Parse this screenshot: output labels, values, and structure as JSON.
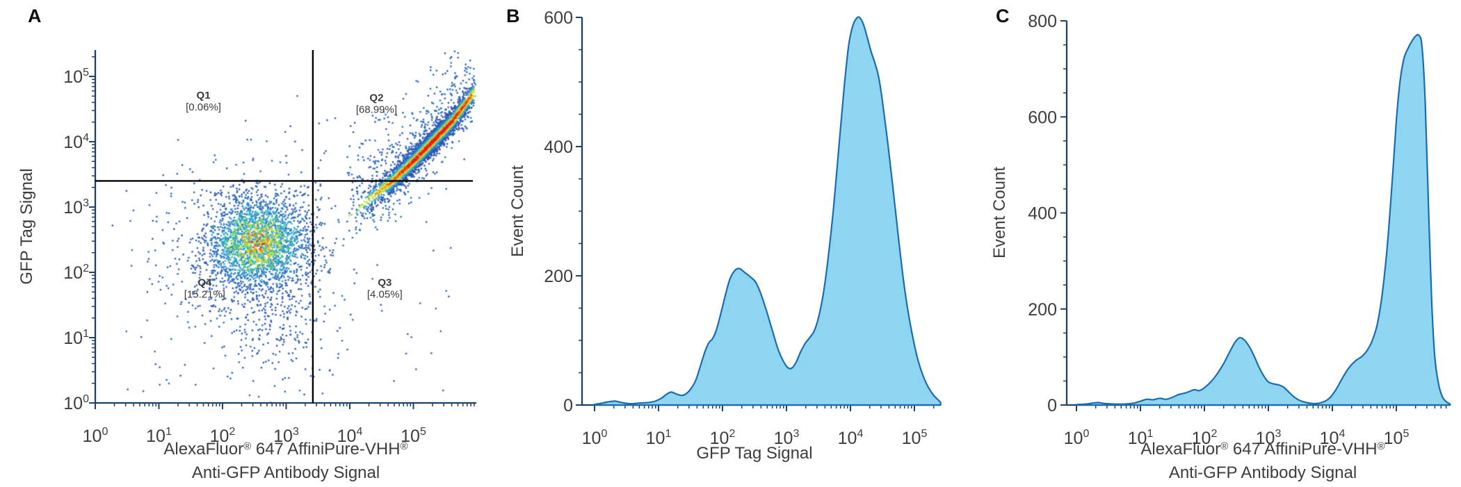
{
  "styles": {
    "axis_color": "#1e4164",
    "text_color": "#3d3d3d",
    "quadrant_line_color": "#000000",
    "quadrant_text_color": "#3a3a3a",
    "histogram_fill": "#8dd5f0",
    "histogram_stroke": "#1a6cae",
    "density_colormap_stops": [
      [
        0,
        "#2d4fae"
      ],
      [
        0.18,
        "#2f9ad6"
      ],
      [
        0.33,
        "#3fc8c3"
      ],
      [
        0.45,
        "#58d06e"
      ],
      [
        0.58,
        "#b2e03a"
      ],
      [
        0.68,
        "#f2e82e"
      ],
      [
        0.78,
        "#f6b41e"
      ],
      [
        0.88,
        "#f07314"
      ],
      [
        1,
        "#e41e1e"
      ]
    ]
  },
  "chart_data": [
    {
      "letter": "A",
      "type": "scatter",
      "title": "",
      "x_axis": {
        "scale": "log",
        "tick_base": "10",
        "major_exponents": [
          0,
          1,
          2,
          3,
          4,
          5
        ],
        "max_log": 5.99,
        "label_lines": [
          "AlexaFluor® 647 AffiniPure-VHH®",
          "Anti-GFP Antibody Signal"
        ]
      },
      "y_axis": {
        "scale": "log",
        "tick_base": "10",
        "major_exponents": [
          0,
          1,
          2,
          3,
          4,
          5
        ],
        "max_log": 5.4,
        "label": "GFP Tag Signal"
      },
      "quadrant_gate": {
        "x_divider": 2630,
        "y_divider": 2510,
        "labels": [
          {
            "name": "Q1",
            "value": "[0.06%]",
            "log_x": 1.7,
            "log_y": 4.66
          },
          {
            "name": "Q2",
            "value": "[68.99%]",
            "log_x": 4.42,
            "log_y": 4.62
          },
          {
            "name": "Q3",
            "value": "[4.05%]",
            "log_x": 4.55,
            "log_y": 1.79
          },
          {
            "name": "Q4",
            "value": "[15.21%]",
            "log_x": 1.72,
            "log_y": 1.79
          }
        ]
      },
      "seed": 42,
      "point_size": 2.4,
      "clusters": [
        {
          "kind": "gauss",
          "n": 2300,
          "cx": 2.55,
          "cy": 2.45,
          "sx": 0.4,
          "sy": 0.35,
          "color": "density",
          "scale": 0.85
        },
        {
          "kind": "gauss",
          "n": 560,
          "cx": 2.5,
          "cy": 2.35,
          "sx": 0.8,
          "sy": 0.7,
          "color": "flat",
          "v": 0.05
        },
        {
          "kind": "gauss",
          "n": 230,
          "cx": 2.75,
          "cy": 1.3,
          "sx": 0.45,
          "sy": 0.55,
          "color": "flat",
          "v": 0.03
        },
        {
          "kind": "band",
          "n": 3200,
          "t_mean": 0.65,
          "t_sd": 0.22,
          "x_start": 4.0,
          "x_span": 1.95,
          "perp_sd": 0.09,
          "color": "density",
          "centerline": [
            [
              4.0,
              2.88
            ],
            [
              4.3,
              3.12
            ],
            [
              4.65,
              3.38
            ],
            [
              5.0,
              3.7
            ],
            [
              5.3,
              4.0
            ],
            [
              5.6,
              4.3
            ],
            [
              5.95,
              4.75
            ]
          ]
        },
        {
          "kind": "band",
          "n": 300,
          "t_mean": 0.55,
          "t_sd": 0.3,
          "x_start": 4.0,
          "x_span": 1.95,
          "perp_sd": 0.28,
          "color": "flat",
          "v": 0.06,
          "centerline": [
            [
              4.0,
              2.88
            ],
            [
              4.3,
              3.12
            ],
            [
              4.65,
              3.38
            ],
            [
              5.0,
              3.7
            ],
            [
              5.3,
              4.0
            ],
            [
              5.6,
              4.3
            ],
            [
              5.95,
              4.75
            ]
          ]
        },
        {
          "kind": "band_spray",
          "n": 150,
          "offset_min": 0.1,
          "offset_max": 0.6,
          "side": 1,
          "centerline": [
            [
              4.0,
              2.88
            ],
            [
              4.3,
              3.12
            ],
            [
              4.65,
              3.38
            ],
            [
              5.0,
              3.7
            ],
            [
              5.3,
              4.0
            ],
            [
              5.6,
              4.3
            ],
            [
              5.95,
              4.75
            ]
          ],
          "x_start": 4.0,
          "x_span": 1.95
        },
        {
          "kind": "band_spray",
          "n": 45,
          "offset_min": 0.55,
          "offset_max": 1.25,
          "side": 1,
          "centerline": [
            [
              4.0,
              2.88
            ],
            [
              4.3,
              3.12
            ],
            [
              4.65,
              3.38
            ],
            [
              5.0,
              3.7
            ],
            [
              5.3,
              4.0
            ],
            [
              5.6,
              4.3
            ],
            [
              5.95,
              4.75
            ]
          ],
          "x_start": 4.3,
          "x_span": 1.65
        },
        {
          "kind": "band_spray",
          "n": 55,
          "offset_min": 0.1,
          "offset_max": 0.45,
          "side": -1,
          "centerline": [
            [
              4.0,
              2.88
            ],
            [
              4.3,
              3.12
            ],
            [
              4.65,
              3.38
            ],
            [
              5.0,
              3.7
            ],
            [
              5.3,
              4.0
            ],
            [
              5.6,
              4.3
            ],
            [
              5.95,
              4.75
            ]
          ],
          "x_start": 4.0,
          "x_span": 1.95
        },
        {
          "kind": "uniform",
          "n": 95,
          "x": [
            0.25,
            5.6
          ],
          "y": [
            0.15,
            3.3
          ]
        },
        {
          "kind": "uniform",
          "n": 30,
          "x": [
            3.5,
            4.8
          ],
          "y": [
            3.45,
            4.4
          ]
        },
        {
          "kind": "uniform",
          "n": 8,
          "x": [
            1.0,
            3.3
          ],
          "y": [
            3.5,
            4.9
          ]
        },
        {
          "kind": "uniform",
          "n": 14,
          "x": [
            4.9,
            5.9
          ],
          "y": [
            4.7,
            5.3
          ]
        }
      ]
    },
    {
      "letter": "B",
      "type": "area",
      "title": "",
      "x_axis": {
        "scale": "log",
        "tick_base": "10",
        "major_exponents": [
          0,
          1,
          2,
          3,
          4,
          5
        ],
        "max_log": 5.41,
        "label_lines": [
          "GFP Tag Signal"
        ]
      },
      "y_axis": {
        "scale": "linear",
        "label": "Event Count",
        "major_ticks": [
          0,
          200,
          400,
          600
        ],
        "minor_step": 50,
        "ylim": [
          0,
          600
        ]
      },
      "curve": [
        [
          0,
          1
        ],
        [
          0.12,
          3
        ],
        [
          0.22,
          5
        ],
        [
          0.32,
          6
        ],
        [
          0.42,
          4
        ],
        [
          0.55,
          2
        ],
        [
          0.7,
          3
        ],
        [
          0.85,
          4
        ],
        [
          0.95,
          6
        ],
        [
          1.05,
          11
        ],
        [
          1.13,
          17
        ],
        [
          1.2,
          20
        ],
        [
          1.28,
          17
        ],
        [
          1.38,
          15
        ],
        [
          1.48,
          22
        ],
        [
          1.58,
          38
        ],
        [
          1.66,
          62
        ],
        [
          1.73,
          84
        ],
        [
          1.79,
          97
        ],
        [
          1.84,
          102
        ],
        [
          1.9,
          115
        ],
        [
          1.97,
          140
        ],
        [
          2.05,
          172
        ],
        [
          2.12,
          196
        ],
        [
          2.2,
          209
        ],
        [
          2.27,
          211
        ],
        [
          2.35,
          205
        ],
        [
          2.44,
          198
        ],
        [
          2.52,
          190
        ],
        [
          2.6,
          172
        ],
        [
          2.69,
          145
        ],
        [
          2.78,
          115
        ],
        [
          2.87,
          86
        ],
        [
          2.95,
          68
        ],
        [
          3.02,
          58
        ],
        [
          3.08,
          57
        ],
        [
          3.15,
          66
        ],
        [
          3.22,
          82
        ],
        [
          3.29,
          95
        ],
        [
          3.36,
          104
        ],
        [
          3.43,
          114
        ],
        [
          3.5,
          135
        ],
        [
          3.58,
          175
        ],
        [
          3.66,
          235
        ],
        [
          3.74,
          310
        ],
        [
          3.82,
          400
        ],
        [
          3.9,
          490
        ],
        [
          3.97,
          555
        ],
        [
          4.03,
          585
        ],
        [
          4.09,
          598
        ],
        [
          4.14,
          600
        ],
        [
          4.2,
          590
        ],
        [
          4.26,
          570
        ],
        [
          4.32,
          548
        ],
        [
          4.38,
          530
        ],
        [
          4.44,
          508
        ],
        [
          4.5,
          470
        ],
        [
          4.58,
          408
        ],
        [
          4.66,
          340
        ],
        [
          4.74,
          268
        ],
        [
          4.82,
          200
        ],
        [
          4.9,
          145
        ],
        [
          4.98,
          102
        ],
        [
          5.06,
          68
        ],
        [
          5.14,
          44
        ],
        [
          5.22,
          27
        ],
        [
          5.3,
          15
        ],
        [
          5.38,
          7
        ],
        [
          5.41,
          4
        ]
      ]
    },
    {
      "letter": "C",
      "type": "area",
      "title": "",
      "x_axis": {
        "scale": "log",
        "tick_base": "10",
        "major_exponents": [
          0,
          1,
          2,
          3,
          4,
          5
        ],
        "max_log": 5.84,
        "label_lines": [
          "AlexaFluor® 647 AffiniPure-VHH®",
          "Anti-GFP Antibody Signal"
        ]
      },
      "y_axis": {
        "scale": "linear",
        "label": "Event Count",
        "major_ticks": [
          0,
          200,
          400,
          600,
          800
        ],
        "minor_step": 50,
        "ylim": [
          0,
          800
        ]
      },
      "curve": [
        [
          0,
          1
        ],
        [
          0.15,
          2
        ],
        [
          0.25,
          4
        ],
        [
          0.35,
          5
        ],
        [
          0.45,
          3
        ],
        [
          0.6,
          2
        ],
        [
          0.75,
          2
        ],
        [
          0.9,
          4
        ],
        [
          1.0,
          8
        ],
        [
          1.1,
          12
        ],
        [
          1.2,
          11
        ],
        [
          1.3,
          14
        ],
        [
          1.4,
          12
        ],
        [
          1.5,
          16
        ],
        [
          1.6,
          22
        ],
        [
          1.7,
          25
        ],
        [
          1.78,
          29
        ],
        [
          1.85,
          32
        ],
        [
          1.92,
          30
        ],
        [
          2.0,
          36
        ],
        [
          2.1,
          48
        ],
        [
          2.2,
          65
        ],
        [
          2.3,
          86
        ],
        [
          2.4,
          112
        ],
        [
          2.48,
          131
        ],
        [
          2.55,
          140
        ],
        [
          2.62,
          136
        ],
        [
          2.7,
          122
        ],
        [
          2.78,
          101
        ],
        [
          2.86,
          77
        ],
        [
          2.94,
          58
        ],
        [
          3.0,
          48
        ],
        [
          3.08,
          44
        ],
        [
          3.16,
          42
        ],
        [
          3.24,
          37
        ],
        [
          3.32,
          27
        ],
        [
          3.4,
          17
        ],
        [
          3.5,
          9
        ],
        [
          3.6,
          5
        ],
        [
          3.7,
          3
        ],
        [
          3.8,
          4
        ],
        [
          3.9,
          9
        ],
        [
          3.98,
          18
        ],
        [
          4.06,
          33
        ],
        [
          4.14,
          52
        ],
        [
          4.22,
          70
        ],
        [
          4.3,
          84
        ],
        [
          4.38,
          94
        ],
        [
          4.46,
          101
        ],
        [
          4.54,
          113
        ],
        [
          4.62,
          133
        ],
        [
          4.7,
          167
        ],
        [
          4.78,
          232
        ],
        [
          4.86,
          333
        ],
        [
          4.94,
          475
        ],
        [
          5.0,
          592
        ],
        [
          5.06,
          676
        ],
        [
          5.12,
          722
        ],
        [
          5.18,
          742
        ],
        [
          5.24,
          757
        ],
        [
          5.3,
          768
        ],
        [
          5.35,
          770
        ],
        [
          5.4,
          748
        ],
        [
          5.45,
          635
        ],
        [
          5.5,
          425
        ],
        [
          5.55,
          225
        ],
        [
          5.6,
          102
        ],
        [
          5.66,
          44
        ],
        [
          5.72,
          17
        ],
        [
          5.78,
          7
        ],
        [
          5.84,
          2
        ]
      ]
    }
  ]
}
